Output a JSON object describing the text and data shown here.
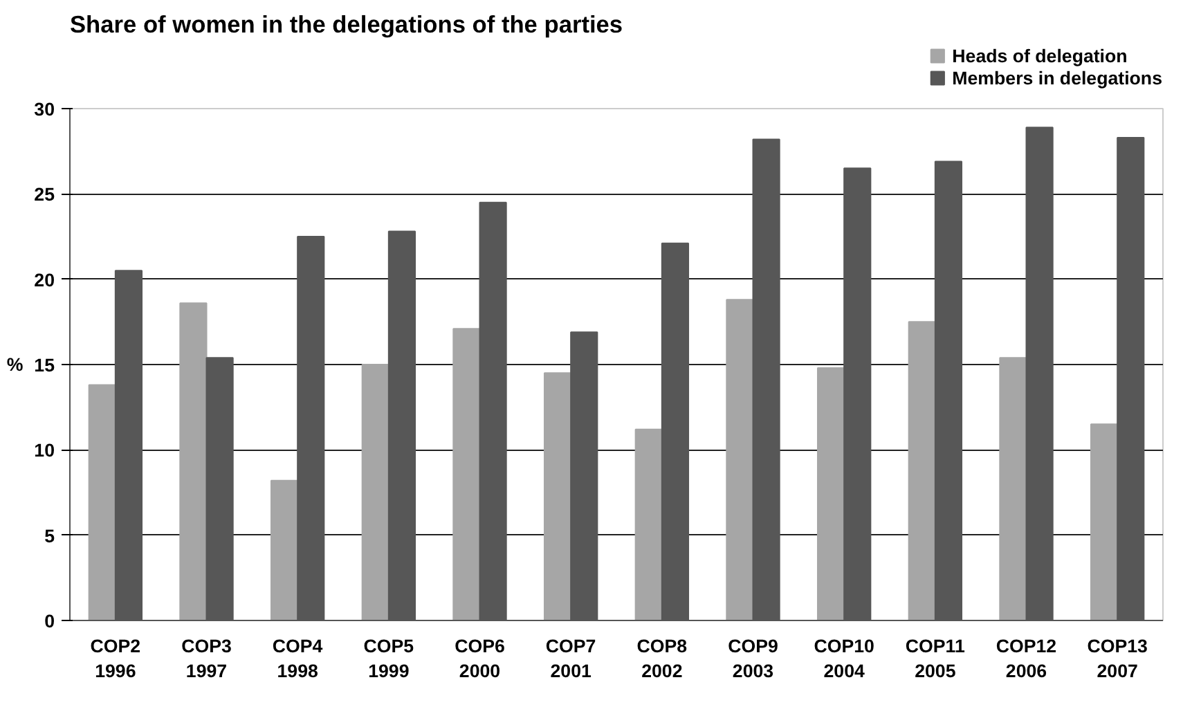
{
  "chart_data": {
    "type": "bar",
    "title": "Share of women in the delegations of the parties",
    "ylabel": "%",
    "categories": [
      "COP2\n1996",
      "COP3\n1997",
      "COP4\n1998",
      "COP5\n1999",
      "COP6\n2000",
      "COP7\n2001",
      "COP8\n2002",
      "COP9\n2003",
      "COP10\n2004",
      "COP11\n2005",
      "COP12\n2006",
      "COP13\n2007"
    ],
    "series": [
      {
        "name": "Heads of delegation",
        "color": "#a6a6a6",
        "values": [
          13.8,
          18.6,
          8.2,
          15.0,
          17.1,
          14.5,
          11.2,
          18.8,
          14.8,
          17.5,
          15.4,
          11.5
        ]
      },
      {
        "name": "Members in delegations",
        "color": "#575757",
        "values": [
          20.5,
          15.4,
          22.5,
          22.8,
          24.5,
          16.9,
          22.1,
          28.2,
          26.5,
          26.9,
          28.9,
          28.3
        ]
      }
    ],
    "ylim": [
      0,
      30
    ],
    "yticks": [
      0,
      5,
      10,
      15,
      20,
      25,
      30
    ],
    "grid": "y",
    "legend": "top right"
  }
}
